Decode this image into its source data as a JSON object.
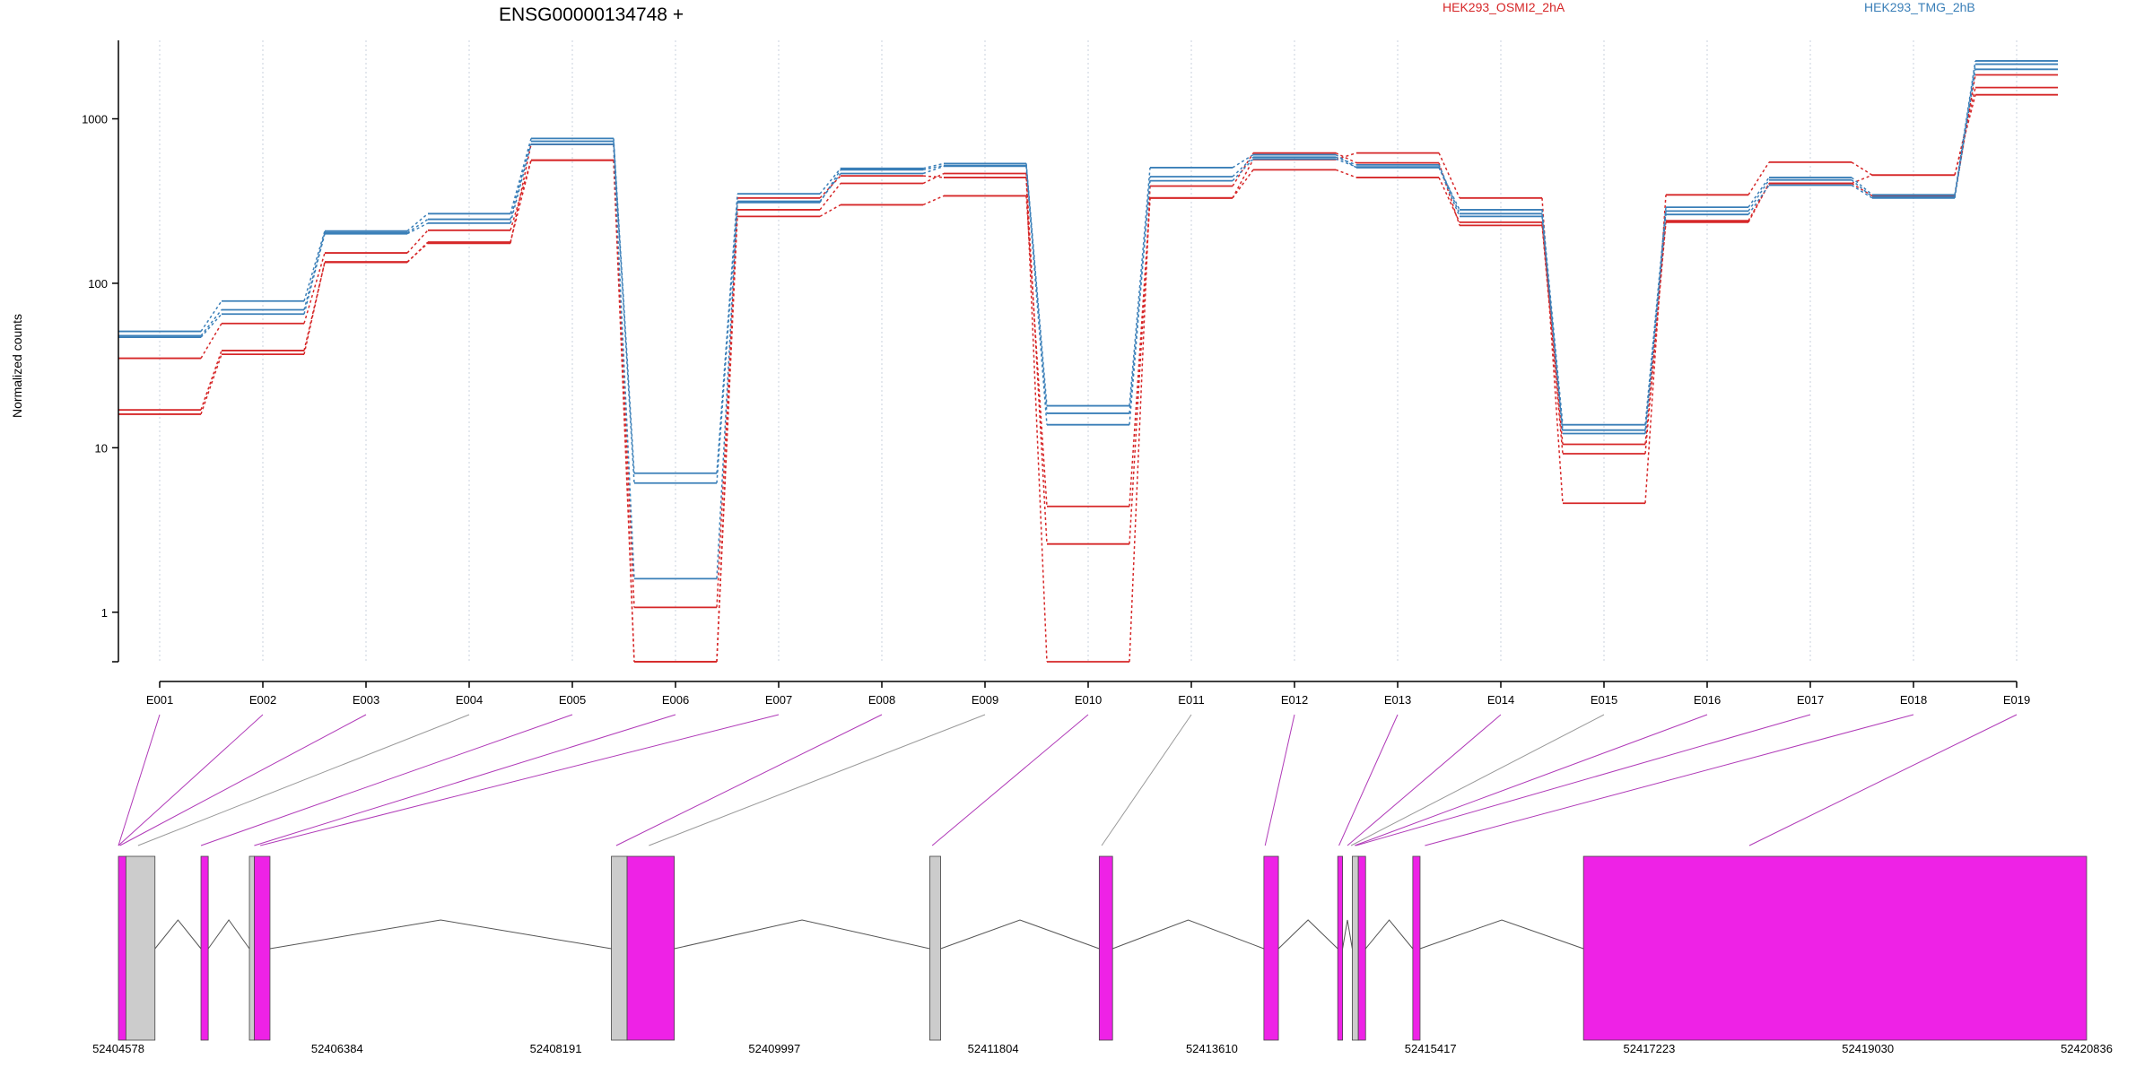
{
  "chart_data": {
    "type": "line",
    "title": "ENSG00000134748 +",
    "ylabel": "Normalized counts",
    "xlabel": "",
    "yscale": "log",
    "ylim": [
      0.5,
      3000
    ],
    "ytick_values": [
      1,
      10,
      100,
      1000
    ],
    "ytick_labels": [
      "1",
      "10",
      "100",
      "1000"
    ],
    "grid": "vertical dotted lines at exon positions",
    "legend": [
      {
        "name": "HEK293_OSMI2_2hA",
        "color": "#d62728",
        "placement": "top-center"
      },
      {
        "name": "HEK293_TMG_2hB",
        "color": "#3a7fb8",
        "placement": "top-right"
      }
    ],
    "categories": [
      "E001",
      "E002",
      "E003",
      "E004",
      "E005",
      "E006",
      "E007",
      "E008",
      "E009",
      "E010",
      "E011",
      "E012",
      "E013",
      "E014",
      "E015",
      "E016",
      "E017",
      "E018",
      "E019"
    ],
    "series": [
      {
        "group": "HEK293_OSMI2_2hA",
        "color": "#d62728",
        "values": [
          35,
          57,
          153,
          210,
          560,
          1.07,
          280,
          405,
          465,
          2.6,
          330,
          490,
          440,
          235,
          10.5,
          240,
          405,
          455,
          1550
        ]
      },
      {
        "group": "HEK293_OSMI2_2hA",
        "color": "#d62728",
        "values": [
          17,
          39,
          134,
          178,
          560,
          0.5,
          255,
          300,
          340,
          4.4,
          330,
          565,
          620,
          330,
          4.6,
          345,
          545,
          455,
          1400
        ]
      },
      {
        "group": "HEK293_OSMI2_2hA",
        "color": "#d62728",
        "values": [
          16,
          37,
          135,
          175,
          700,
          0.5,
          330,
          450,
          440,
          0.5,
          390,
          620,
          540,
          225,
          9.2,
          235,
          405,
          340,
          1850
        ]
      },
      {
        "group": "HEK293_TMG_2hB",
        "color": "#3a7fb8",
        "values": [
          51,
          78,
          208,
          265,
          760,
          7.0,
          350,
          500,
          535,
          18.0,
          505,
          605,
          505,
          280,
          13.8,
          290,
          440,
          345,
          2250
        ]
      },
      {
        "group": "HEK293_TMG_2hB",
        "color": "#3a7fb8",
        "values": [
          48,
          69,
          203,
          245,
          730,
          6.1,
          315,
          465,
          515,
          13.8,
          445,
          585,
          525,
          265,
          12.2,
          275,
          425,
          335,
          2150
        ]
      },
      {
        "group": "HEK293_TMG_2hB",
        "color": "#3a7fb8",
        "values": [
          47,
          65,
          200,
          232,
          700,
          1.6,
          310,
          490,
          520,
          16.2,
          420,
          570,
          510,
          255,
          12.8,
          262,
          395,
          330,
          2000
        ]
      }
    ],
    "gene_model": {
      "coordinate_labels": [
        "52404578",
        "52406384",
        "52408191",
        "52409997",
        "52411804",
        "52413610",
        "52415417",
        "52417223",
        "52419030",
        "52420836"
      ],
      "range": [
        52404578,
        52420836
      ],
      "highlight_color": "#ee22e6",
      "other_color": "#cccccc",
      "exon_blocks": [
        {
          "start": 52404578,
          "end": 52404640,
          "highlighted": true
        },
        {
          "start": 52404640,
          "end": 52404880,
          "highlighted": false
        },
        {
          "start": 52405260,
          "end": 52405320,
          "highlighted": true
        },
        {
          "start": 52405660,
          "end": 52405700,
          "highlighted": false
        },
        {
          "start": 52405700,
          "end": 52405830,
          "highlighted": true
        },
        {
          "start": 52408650,
          "end": 52408780,
          "highlighted": false
        },
        {
          "start": 52408780,
          "end": 52409170,
          "highlighted": true
        },
        {
          "start": 52411280,
          "end": 52411370,
          "highlighted": false
        },
        {
          "start": 52412680,
          "end": 52412790,
          "highlighted": true
        },
        {
          "start": 52414040,
          "end": 52414160,
          "highlighted": true
        },
        {
          "start": 52414650,
          "end": 52414690,
          "highlighted": true
        },
        {
          "start": 52414770,
          "end": 52414820,
          "highlighted": false
        },
        {
          "start": 52414820,
          "end": 52414880,
          "highlighted": true
        },
        {
          "start": 52415270,
          "end": 52415330,
          "highlighted": true
        },
        {
          "start": 52416680,
          "end": 52420836,
          "highlighted": true
        }
      ],
      "exon_link_targets": [
        52404578,
        52404578,
        52404590,
        52404740,
        52405260,
        52405700,
        52405750,
        52408690,
        52408960,
        52411300,
        52412700,
        52414050,
        52414660,
        52414730,
        52414760,
        52414790,
        52414800,
        52415370,
        52418050
      ],
      "exon_link_highlighted": [
        true,
        true,
        true,
        false,
        true,
        true,
        true,
        true,
        false,
        true,
        false,
        true,
        true,
        true,
        false,
        true,
        true,
        true,
        true
      ]
    }
  }
}
